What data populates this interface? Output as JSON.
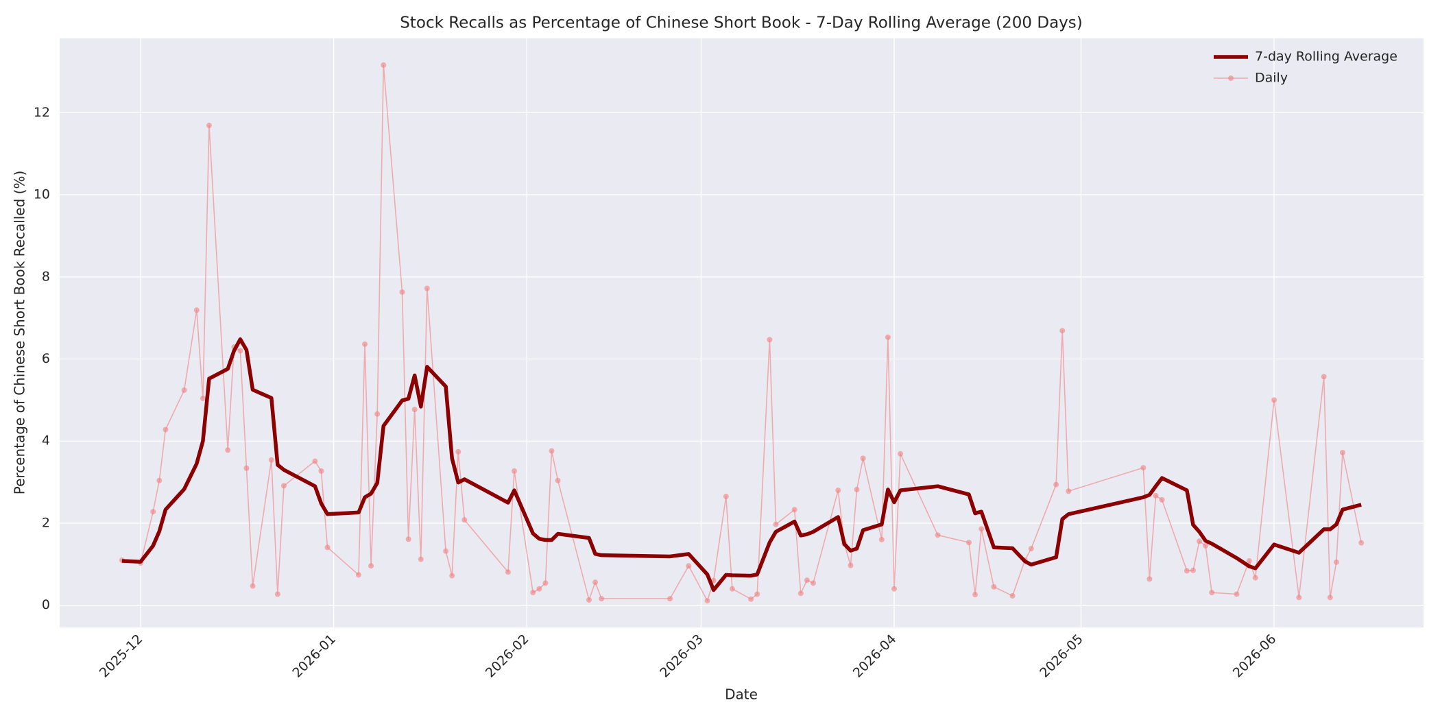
{
  "chart_data": {
    "type": "line",
    "title": "Stock Recalls as Percentage of Chinese Short Book - 7-Day Rolling Average (200 Days)",
    "x_label": "Date",
    "y_label": "Percentage of Chinese Short Book Recalled (%)",
    "x": [
      "2025-11-28",
      "2025-12-01",
      "2025-12-03",
      "2025-12-04",
      "2025-12-05",
      "2025-12-08",
      "2025-12-10",
      "2025-12-11",
      "2025-12-12",
      "2025-12-15",
      "2025-12-16",
      "2025-12-17",
      "2025-12-18",
      "2025-12-19",
      "2025-12-22",
      "2025-12-23",
      "2025-12-24",
      "2025-12-29",
      "2025-12-30",
      "2025-12-31",
      "2026-01-05",
      "2026-01-06",
      "2026-01-07",
      "2026-01-08",
      "2026-01-09",
      "2026-01-12",
      "2026-01-13",
      "2026-01-14",
      "2026-01-15",
      "2026-01-16",
      "2026-01-19",
      "2026-01-20",
      "2026-01-21",
      "2026-01-22",
      "2026-01-29",
      "2026-01-30",
      "2026-02-02",
      "2026-02-03",
      "2026-02-04",
      "2026-02-05",
      "2026-02-06",
      "2026-02-11",
      "2026-02-12",
      "2026-02-13",
      "2026-02-24",
      "2026-02-27",
      "2026-03-02",
      "2026-03-03",
      "2026-03-05",
      "2026-03-06",
      "2026-03-09",
      "2026-03-10",
      "2026-03-12",
      "2026-03-13",
      "2026-03-16",
      "2026-03-17",
      "2026-03-18",
      "2026-03-19",
      "2026-03-23",
      "2026-03-24",
      "2026-03-25",
      "2026-03-26",
      "2026-03-27",
      "2026-03-30",
      "2026-03-31",
      "2026-04-01",
      "2026-04-02",
      "2026-04-08",
      "2026-04-13",
      "2026-04-14",
      "2026-04-15",
      "2026-04-17",
      "2026-04-20",
      "2026-04-22",
      "2026-04-23",
      "2026-04-27",
      "2026-04-28",
      "2026-04-29",
      "2026-05-11",
      "2026-05-12",
      "2026-05-13",
      "2026-05-14",
      "2026-05-18",
      "2026-05-19",
      "2026-05-20",
      "2026-05-21",
      "2026-05-22",
      "2026-05-26",
      "2026-05-28",
      "2026-05-29",
      "2026-06-01",
      "2026-06-05",
      "2026-06-09",
      "2026-06-10",
      "2026-06-11",
      "2026-06-12",
      "2026-06-15"
    ],
    "series": [
      {
        "name": "7-day Rolling Average",
        "color": "#8b0000",
        "values": [
          1.08,
          1.06,
          1.45,
          1.8,
          2.33,
          2.83,
          3.45,
          4.0,
          5.52,
          5.76,
          6.2,
          6.48,
          6.22,
          5.25,
          5.05,
          3.42,
          3.3,
          2.9,
          2.48,
          2.22,
          2.26,
          2.63,
          2.72,
          2.98,
          4.37,
          4.99,
          5.03,
          5.6,
          4.84,
          5.81,
          5.33,
          3.58,
          2.99,
          3.07,
          2.5,
          2.8,
          1.75,
          1.62,
          1.59,
          1.59,
          1.74,
          1.64,
          1.25,
          1.22,
          1.19,
          1.25,
          0.75,
          0.37,
          0.74,
          0.73,
          0.72,
          0.75,
          1.53,
          1.79,
          2.04,
          1.7,
          1.73,
          1.79,
          2.15,
          1.49,
          1.33,
          1.38,
          1.83,
          1.97,
          2.82,
          2.51,
          2.8,
          2.9,
          2.7,
          2.24,
          2.28,
          1.41,
          1.39,
          1.07,
          0.99,
          1.17,
          2.1,
          2.22,
          2.63,
          2.69,
          2.9,
          3.1,
          2.8,
          1.96,
          1.79,
          1.57,
          1.5,
          1.15,
          0.95,
          0.9,
          1.48,
          1.28,
          1.85,
          1.85,
          1.97,
          2.33,
          2.45
        ]
      },
      {
        "name": "Daily",
        "color": "#f08080",
        "values": [
          1.1,
          1.03,
          2.28,
          3.04,
          4.28,
          5.24,
          7.19,
          5.04,
          11.69,
          3.78,
          6.29,
          6.2,
          3.34,
          0.47,
          3.54,
          0.27,
          2.91,
          3.51,
          3.27,
          1.41,
          0.74,
          6.36,
          0.96,
          4.66,
          13.16,
          7.63,
          1.61,
          4.77,
          1.12,
          7.72,
          1.32,
          0.72,
          3.74,
          2.08,
          0.81,
          3.27,
          0.31,
          0.4,
          0.54,
          3.76,
          3.04,
          0.13,
          0.56,
          0.16,
          0.16,
          0.96,
          0.11,
          0.6,
          2.65,
          0.4,
          0.15,
          0.27,
          6.47,
          1.97,
          2.33,
          0.29,
          0.61,
          0.54,
          2.8,
          1.5,
          0.97,
          2.82,
          3.58,
          1.6,
          6.53,
          0.4,
          3.69,
          1.71,
          1.53,
          0.26,
          1.86,
          0.45,
          0.23,
          1.1,
          1.38,
          2.94,
          6.69,
          2.78,
          3.35,
          0.64,
          2.67,
          2.57,
          0.84,
          0.85,
          1.56,
          1.45,
          0.31,
          0.27,
          1.08,
          0.67,
          5.0,
          0.19,
          5.57,
          0.19,
          1.05,
          3.72,
          1.52
        ]
      }
    ],
    "xlim": [
      "2025-11-18",
      "2026-06-25"
    ],
    "xticks": [
      {
        "value": "2025-12-01",
        "label": "2025-12"
      },
      {
        "value": "2026-01-01",
        "label": "2026-01"
      },
      {
        "value": "2026-02-01",
        "label": "2026-02"
      },
      {
        "value": "2026-03-01",
        "label": "2026-03"
      },
      {
        "value": "2026-04-01",
        "label": "2026-04"
      },
      {
        "value": "2026-05-01",
        "label": "2026-05"
      },
      {
        "value": "2026-06-01",
        "label": "2026-06"
      }
    ],
    "ylim": [
      -0.54,
      13.81
    ],
    "yticks": [
      0,
      2,
      4,
      6,
      8,
      10,
      12
    ],
    "grid": true,
    "legend": "upper right"
  }
}
